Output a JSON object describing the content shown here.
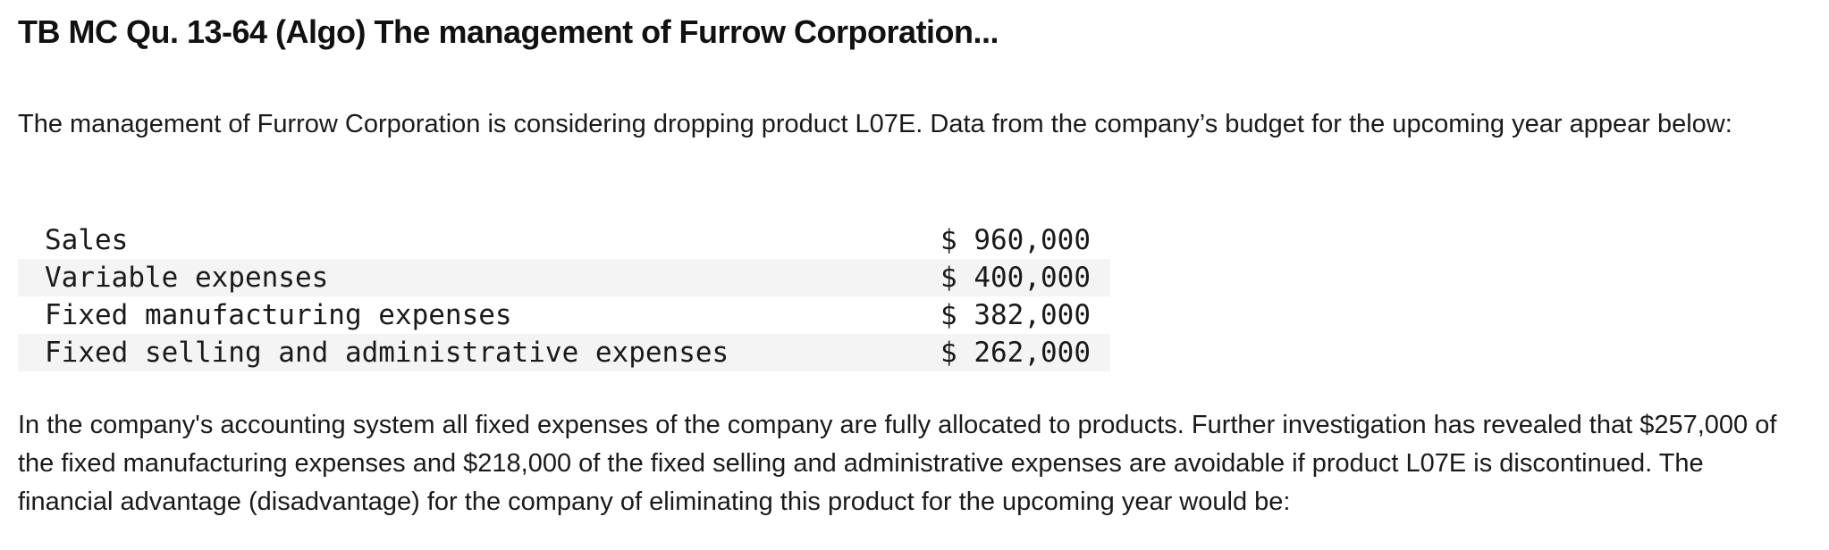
{
  "question": {
    "title": "TB MC Qu. 13-64 (Algo) The management of Furrow Corporation...",
    "intro": "The management of Furrow Corporation is considering dropping product L07E. Data from the company’s budget for the upcoming year appear below:",
    "table": {
      "rows": [
        {
          "label": "Sales",
          "amount": "$ 960,000"
        },
        {
          "label": "Variable expenses",
          "amount": "$ 400,000"
        },
        {
          "label": "Fixed manufacturing expenses",
          "amount": "$ 382,000"
        },
        {
          "label": "Fixed selling and administrative expenses",
          "amount": "$ 262,000"
        }
      ]
    },
    "closing": "In the company's accounting system all fixed expenses of the company are fully allocated to products. Further investigation has revealed that $257,000 of the fixed manufacturing expenses and $218,000 of the fixed selling and administrative expenses are avoidable if product L07E is discontinued. The financial advantage (disadvantage) for the company of eliminating this product for the upcoming year would be:"
  }
}
